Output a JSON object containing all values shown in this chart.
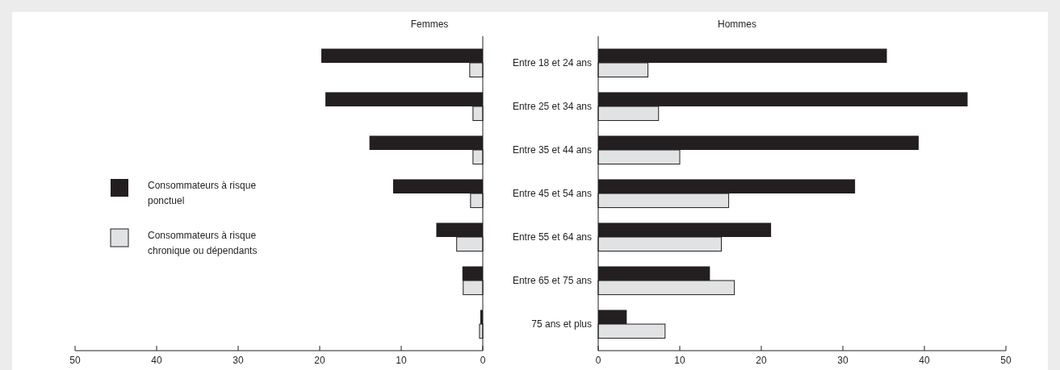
{
  "chart_data": [
    {
      "type": "bar",
      "orientation": "horizontal",
      "title": "Femmes",
      "categories": [
        null,
        null,
        null,
        null,
        null,
        null,
        null
      ],
      "xlim": [
        50,
        0
      ],
      "xticks": [
        50,
        40,
        30,
        20,
        10,
        0
      ],
      "legend": "left",
      "grid": false,
      "series": [
        {
          "name": "Consommateurs à risque ponctuel",
          "color": "#231f20",
          "values": [
            19.8,
            19.3,
            13.9,
            11.0,
            5.7,
            2.5,
            0.3
          ]
        },
        {
          "name": "Consommateurs à risque chronique ou dépendants",
          "color": "#e1e2e3",
          "values": [
            1.6,
            1.2,
            1.2,
            1.5,
            3.2,
            2.4,
            0.4
          ]
        }
      ]
    },
    {
      "type": "bar",
      "orientation": "horizontal",
      "title": "Hommes",
      "categories": [
        "Entre 18 et 24 ans",
        "Entre 25 et 34 ans",
        "Entre 35 et 44 ans",
        "Entre 45 et 54 ans",
        "Entre 55 et 64 ans",
        "Entre 65 et 75 ans",
        "75 ans et plus"
      ],
      "xlim": [
        0,
        50
      ],
      "xticks": [
        0,
        10,
        20,
        30,
        40,
        50
      ],
      "legend": false,
      "grid": false,
      "series": [
        {
          "color": "#231f20",
          "values": [
            35.4,
            45.3,
            39.3,
            31.5,
            21.2,
            13.7,
            3.5
          ]
        },
        {
          "color": "#e1e2e3",
          "values": [
            6.1,
            7.4,
            10.0,
            16.0,
            15.1,
            16.7,
            8.2
          ]
        }
      ]
    }
  ]
}
